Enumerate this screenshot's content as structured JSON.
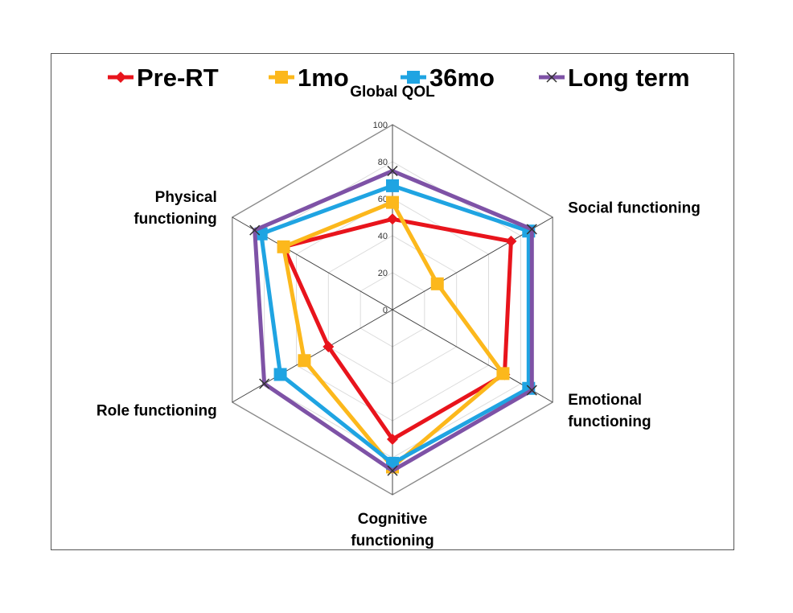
{
  "chart_data": {
    "type": "radar",
    "axes": [
      "Global QOL",
      "Social functioning",
      "Emotional functioning",
      "Cognitive functioning",
      "Role functioning",
      "Physical functioning"
    ],
    "axis_label_lines": [
      [
        "Global QOL"
      ],
      [
        "Social functioning"
      ],
      [
        "Emotional",
        "functioning"
      ],
      [
        "Cognitive",
        "functioning"
      ],
      [
        "Role functioning"
      ],
      [
        "Physical",
        "functioning"
      ]
    ],
    "rlim": [
      0,
      100
    ],
    "ticks": [
      "0",
      "20",
      "40",
      "60",
      "80",
      "100"
    ],
    "grid": true,
    "legend_position": "top",
    "series": [
      {
        "name": "Pre-RT",
        "color": "#e8141c",
        "marker": "diamond",
        "values": [
          49,
          74,
          70,
          70,
          40,
          68
        ]
      },
      {
        "name": "1mo",
        "color": "#fcb81c",
        "marker": "square",
        "values": [
          58,
          28,
          69,
          85,
          55,
          68
        ]
      },
      {
        "name": "36mo",
        "color": "#1fa4e2",
        "marker": "square",
        "values": [
          67,
          85,
          85,
          83,
          70,
          82
        ]
      },
      {
        "name": "Long term",
        "color": "#7e52a6",
        "marker": "x",
        "values": [
          75,
          87,
          87,
          87,
          80,
          86
        ]
      }
    ]
  }
}
